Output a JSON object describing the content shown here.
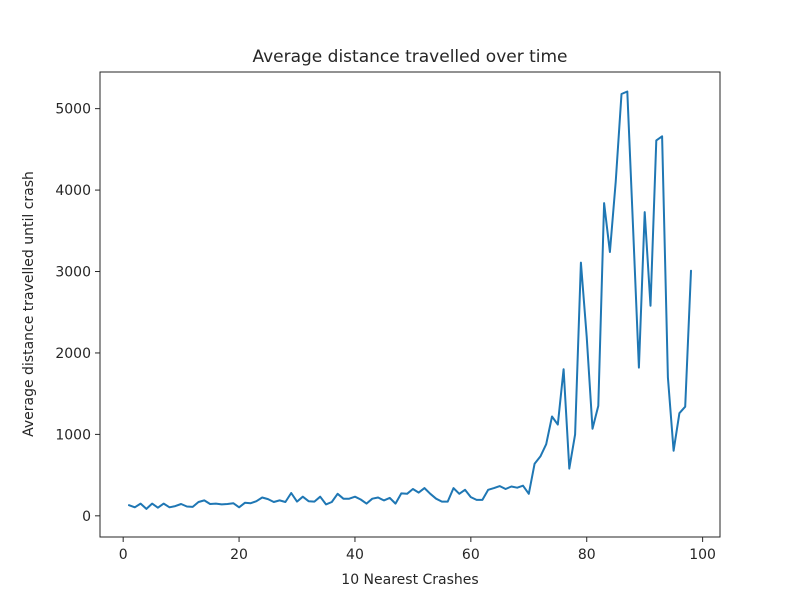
{
  "chart_data": {
    "type": "line",
    "title": "Average distance travelled over time",
    "xlabel": "10 Nearest Crashes",
    "ylabel": "Average distance travelled until crash",
    "xlim": [
      -4,
      103
    ],
    "ylim": [
      -260,
      5450
    ],
    "xticks": [
      0,
      20,
      40,
      60,
      80,
      100
    ],
    "yticks": [
      0,
      1000,
      2000,
      3000,
      4000,
      5000
    ],
    "grid": false,
    "legend": "none",
    "series_color": "#1f77b4",
    "x": [
      1,
      2,
      3,
      4,
      5,
      6,
      7,
      8,
      9,
      10,
      11,
      12,
      13,
      14,
      15,
      16,
      17,
      18,
      19,
      20,
      21,
      22,
      23,
      24,
      25,
      26,
      27,
      28,
      29,
      30,
      31,
      32,
      33,
      34,
      35,
      36,
      37,
      38,
      39,
      40,
      41,
      42,
      43,
      44,
      45,
      46,
      47,
      48,
      49,
      50,
      51,
      52,
      53,
      54,
      55,
      56,
      57,
      58,
      59,
      60,
      61,
      62,
      63,
      64,
      65,
      66,
      67,
      68,
      69,
      70,
      71,
      72,
      73,
      74,
      75,
      76,
      77,
      78,
      79,
      80,
      81,
      82,
      83,
      84,
      85,
      86,
      87,
      88,
      89,
      90,
      91,
      92,
      93,
      94,
      95,
      96,
      97,
      98
    ],
    "y": [
      130,
      105,
      150,
      85,
      150,
      100,
      150,
      105,
      120,
      145,
      115,
      110,
      170,
      190,
      145,
      150,
      140,
      145,
      155,
      105,
      160,
      155,
      180,
      225,
      205,
      170,
      190,
      170,
      280,
      175,
      235,
      180,
      175,
      235,
      140,
      170,
      270,
      210,
      210,
      235,
      200,
      150,
      210,
      225,
      190,
      220,
      150,
      275,
      270,
      330,
      285,
      340,
      270,
      210,
      175,
      175,
      340,
      270,
      320,
      230,
      195,
      195,
      320,
      340,
      365,
      330,
      360,
      345,
      370,
      270,
      640,
      730,
      880,
      1220,
      1120,
      1800,
      580,
      1000,
      3110,
      2200,
      1070,
      1350,
      3840,
      3240,
      4100,
      5180,
      5210,
      3530,
      1820,
      3730,
      2580,
      4610,
      4660,
      1700,
      800,
      1260,
      1340,
      3010
    ]
  }
}
